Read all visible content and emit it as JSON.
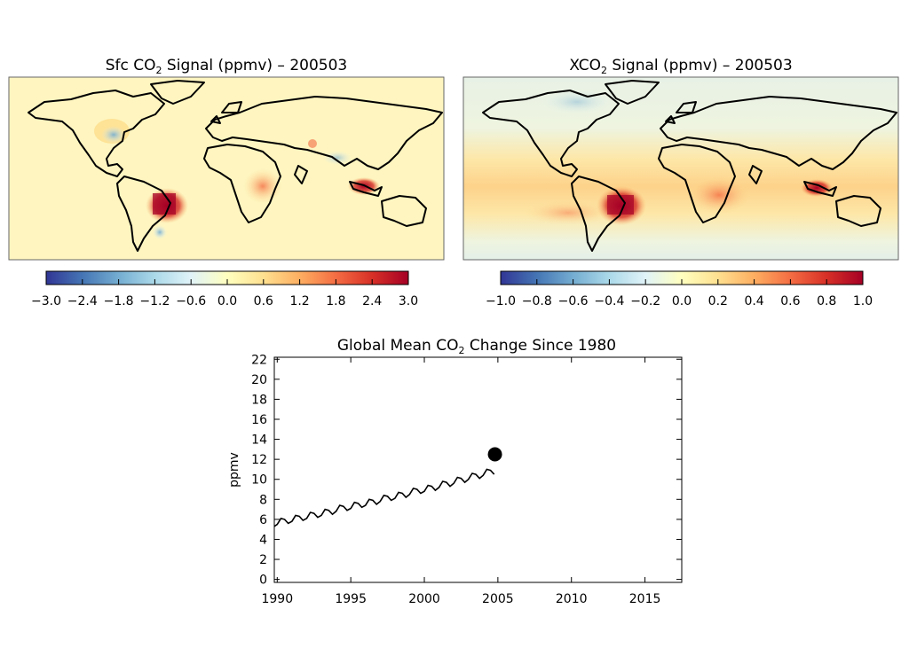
{
  "maps": [
    {
      "title_prefix": "Sfc CO",
      "title_sub": "2",
      "title_suffix": " Signal (ppmv) – 200503",
      "colorbar_ticks": [
        "−3.0",
        "−2.4",
        "−1.8",
        "−1.2",
        "−0.6",
        "0.0",
        "0.6",
        "1.2",
        "1.8",
        "2.4",
        "3.0"
      ],
      "colorbar_range": [
        -3.0,
        3.0
      ]
    },
    {
      "title_prefix": "XCO",
      "title_sub": "2",
      "title_suffix": " Signal (ppmv) – 200503",
      "colorbar_ticks": [
        "−1.0",
        "−0.8",
        "−0.6",
        "−0.4",
        "−0.2",
        "0.0",
        "0.2",
        "0.4",
        "0.6",
        "0.8",
        "1.0"
      ],
      "colorbar_range": [
        -1.0,
        1.0
      ]
    }
  ],
  "colors": {
    "colormap": [
      "#313695",
      "#4575b4",
      "#74add1",
      "#abd9e9",
      "#e0f3f8",
      "#ffffbf",
      "#fee090",
      "#fdae61",
      "#f46d43",
      "#d73027",
      "#a50026"
    ],
    "line": "#000000"
  },
  "chart_data": {
    "type": "line",
    "title_prefix": "Global Mean CO",
    "title_sub": "2",
    "title_suffix": " Change Since 1980",
    "ylabel": "ppmv",
    "xlabel": "",
    "xlim": [
      1989.8,
      2017.5
    ],
    "ylim": [
      -0.3,
      22.2
    ],
    "xticks": [
      1990,
      1995,
      2000,
      2005,
      2010,
      2015
    ],
    "yticks": [
      0,
      2,
      4,
      6,
      8,
      10,
      12,
      14,
      16,
      18,
      20,
      22
    ],
    "series": [
      {
        "x": [
          1989.8,
          1990.0,
          1990.25,
          1990.5,
          1990.75,
          1991.0,
          1991.25,
          1991.5,
          1991.75,
          1992.0,
          1992.25,
          1992.5,
          1992.75,
          1993.0,
          1993.25,
          1993.5,
          1993.75,
          1994.0,
          1994.25,
          1994.5,
          1994.75,
          1995.0,
          1995.25,
          1995.5,
          1995.75,
          1996.0,
          1996.25,
          1996.5,
          1996.75,
          1997.0,
          1997.25,
          1997.5,
          1997.75,
          1998.0,
          1998.25,
          1998.5,
          1998.75,
          1999.0,
          1999.25,
          1999.5,
          1999.75,
          2000.0,
          2000.25,
          2000.5,
          2000.75,
          2001.0,
          2001.25,
          2001.5,
          2001.75,
          2002.0,
          2002.25,
          2002.5,
          2002.75,
          2003.0,
          2003.25,
          2003.5,
          2003.75,
          2004.0,
          2004.25,
          2004.5,
          2004.75
        ],
        "y": [
          5.3,
          5.5,
          6.1,
          6.0,
          5.6,
          5.8,
          6.4,
          6.3,
          5.9,
          6.1,
          6.7,
          6.6,
          6.2,
          6.4,
          7.0,
          6.9,
          6.5,
          6.8,
          7.4,
          7.3,
          6.9,
          7.1,
          7.7,
          7.6,
          7.2,
          7.4,
          8.0,
          7.9,
          7.5,
          7.8,
          8.4,
          8.3,
          7.9,
          8.1,
          8.7,
          8.6,
          8.2,
          8.5,
          9.1,
          9.0,
          8.6,
          8.8,
          9.4,
          9.3,
          8.9,
          9.2,
          9.8,
          9.7,
          9.3,
          9.6,
          10.2,
          10.1,
          9.7,
          10.0,
          10.6,
          10.5,
          10.1,
          10.4,
          11.0,
          10.9,
          10.5
        ]
      }
    ],
    "marker": {
      "x": 2004.8,
      "y": 12.5
    }
  }
}
